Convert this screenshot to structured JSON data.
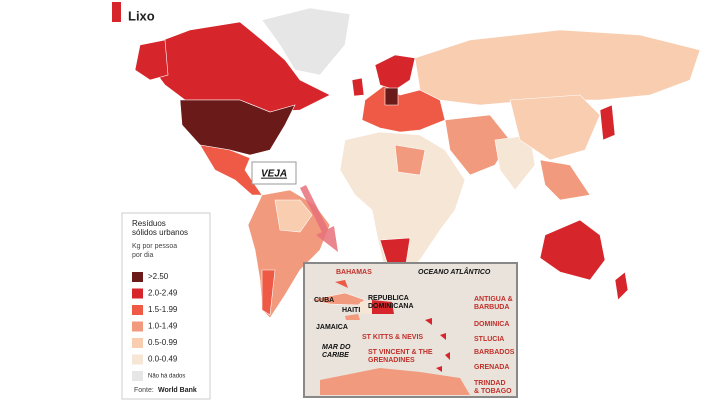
{
  "header": {
    "title": "Lixo"
  },
  "legend": {
    "title": [
      "Resíduos",
      "sólidos urbanos"
    ],
    "unit": [
      "Kg por pessoa",
      "por dia"
    ],
    "items": [
      {
        "label": ">2.50",
        "color": "#6b1a1a"
      },
      {
        "label": "2.0-2.49",
        "color": "#d7262b"
      },
      {
        "label": "1.5-1.99",
        "color": "#ee5a45"
      },
      {
        "label": "1.0-1.49",
        "color": "#f29a7d"
      },
      {
        "label": "0.5-0.99",
        "color": "#f8cdb0"
      },
      {
        "label": "0.0-0.49",
        "color": "#f6e6d6"
      },
      {
        "label": "Não há dados",
        "color": "#e6e6e6"
      }
    ],
    "source": {
      "label": "Fonte:",
      "name": "World Bank"
    }
  },
  "callout": "VEJA",
  "inset": {
    "labels": {
      "bahamas": "BAHAMAS",
      "ocean": "OCEANO ATLÂNTICO",
      "cuba": "CUBA",
      "dominican_republic": [
        "REPUBLICA",
        "DOMINICANA"
      ],
      "haiti": "HAITI",
      "jamaica": "JAMAICA",
      "sea": [
        "MAR DO",
        "CARIBE"
      ],
      "antigua": [
        "ANTIGUA &",
        "BARBUDA"
      ],
      "dominica": "DOMINICA",
      "st_lucia": "STLUCIA",
      "barbados": "BARBADOS",
      "grenada": "GRENADA",
      "trinidad": [
        "TRINDAD",
        "& TOBAGO"
      ],
      "st_kitts": "ST KITTS & NEVIS",
      "st_vincent": [
        "ST VINCENT & THE",
        "GRENADINES"
      ]
    }
  }
}
